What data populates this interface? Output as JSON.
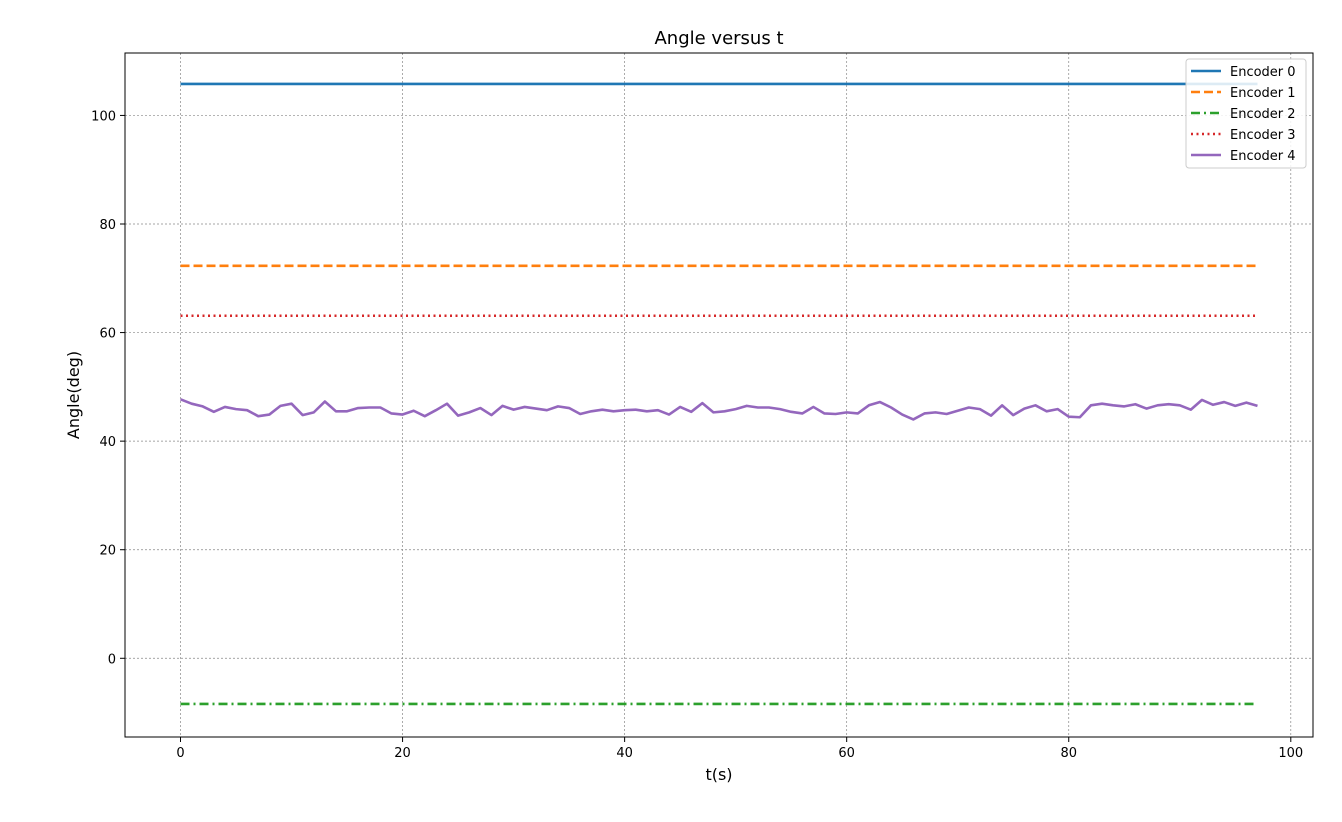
{
  "chart_data": {
    "type": "line",
    "title": "Angle versus t",
    "xlabel": "t(s)",
    "ylabel": "Angle(deg)",
    "xlim": [
      -5,
      102
    ],
    "ylim": [
      -14.5,
      111.5
    ],
    "xticks": [
      0,
      20,
      40,
      60,
      80,
      100
    ],
    "yticks": [
      0,
      20,
      40,
      60,
      80,
      100
    ],
    "grid": true,
    "legend_position": "top-right",
    "x_start": 0,
    "x_end": 97,
    "series": [
      {
        "name": "Encoder 0",
        "color": "#1f77b4",
        "dash": "solid",
        "constant": 105.8
      },
      {
        "name": "Encoder 1",
        "color": "#ff7f0e",
        "dash": "dashed",
        "constant": 72.3
      },
      {
        "name": "Encoder 2",
        "color": "#2ca02c",
        "dash": "dashdot",
        "constant": -8.4
      },
      {
        "name": "Encoder 3",
        "color": "#d62728",
        "dash": "dotted",
        "constant": 63.1
      },
      {
        "name": "Encoder 4",
        "color": "#9467bd",
        "dash": "solid",
        "values": [
          47.7,
          46.9,
          46.4,
          45.4,
          46.3,
          45.9,
          45.7,
          44.6,
          44.9,
          46.5,
          46.9,
          44.8,
          45.3,
          47.3,
          45.5,
          45.5,
          46.1,
          46.2,
          46.2,
          45.1,
          44.9,
          45.6,
          44.6,
          45.7,
          46.9,
          44.7,
          45.3,
          46.1,
          44.8,
          46.5,
          45.8,
          46.3,
          46.0,
          45.7,
          46.4,
          46.1,
          45.0,
          45.5,
          45.8,
          45.5,
          45.7,
          45.8,
          45.5,
          45.7,
          44.9,
          46.3,
          45.4,
          47.0,
          45.3,
          45.5,
          45.9,
          46.5,
          46.2,
          46.2,
          45.9,
          45.4,
          45.1,
          46.3,
          45.1,
          45.0,
          45.3,
          45.1,
          46.6,
          47.2,
          46.2,
          44.9,
          44.0,
          45.1,
          45.3,
          45.0,
          45.6,
          46.2,
          45.9,
          44.7,
          46.6,
          44.8,
          46.0,
          46.6,
          45.5,
          45.9,
          44.5,
          44.4,
          46.6,
          46.9,
          46.6,
          46.4,
          46.8,
          46.0,
          46.6,
          46.8,
          46.6,
          45.8,
          47.6,
          46.7,
          47.2,
          46.5,
          47.1,
          46.5
        ]
      }
    ]
  }
}
